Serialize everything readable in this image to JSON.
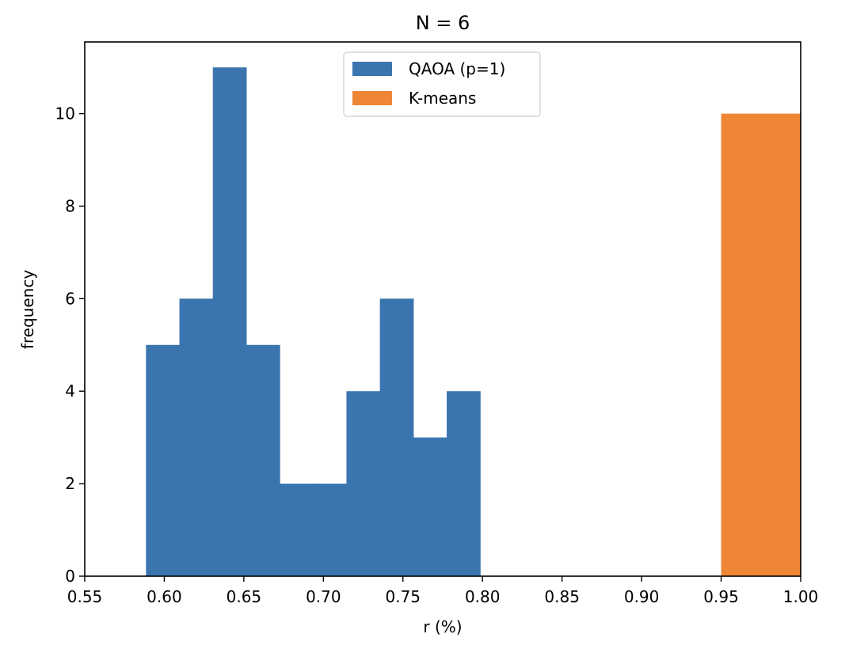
{
  "chart_data": {
    "type": "bar",
    "title": "N = 6",
    "xlabel": "r (%)",
    "ylabel": "frequency",
    "xlim": [
      0.55,
      1.0
    ],
    "ylim": [
      0,
      11.55
    ],
    "x_ticks": [
      "0.55",
      "0.60",
      "0.65",
      "0.70",
      "0.75",
      "0.80",
      "0.85",
      "0.90",
      "0.95",
      "1.00"
    ],
    "y_ticks": [
      "0",
      "2",
      "4",
      "6",
      "8",
      "10"
    ],
    "grid": false,
    "legend_position": "upper center",
    "series": [
      {
        "name": "QAOA (p=1)",
        "color": "#3b75af",
        "bins": [
          {
            "x0": 0.5885,
            "x1": 0.6095,
            "count": 5
          },
          {
            "x0": 0.6095,
            "x1": 0.6305,
            "count": 6
          },
          {
            "x0": 0.6305,
            "x1": 0.6515,
            "count": 11
          },
          {
            "x0": 0.6515,
            "x1": 0.6725,
            "count": 5
          },
          {
            "x0": 0.6725,
            "x1": 0.6935,
            "count": 2
          },
          {
            "x0": 0.6935,
            "x1": 0.7145,
            "count": 2
          },
          {
            "x0": 0.7145,
            "x1": 0.7355,
            "count": 4
          },
          {
            "x0": 0.7355,
            "x1": 0.7565,
            "count": 6
          },
          {
            "x0": 0.7565,
            "x1": 0.7775,
            "count": 3
          },
          {
            "x0": 0.7775,
            "x1": 0.7985,
            "count": 4
          }
        ]
      },
      {
        "name": "K-means",
        "color": "#ef8636",
        "bins": [
          {
            "x0": 0.95,
            "x1": 1.0,
            "count": 10
          }
        ]
      }
    ]
  }
}
